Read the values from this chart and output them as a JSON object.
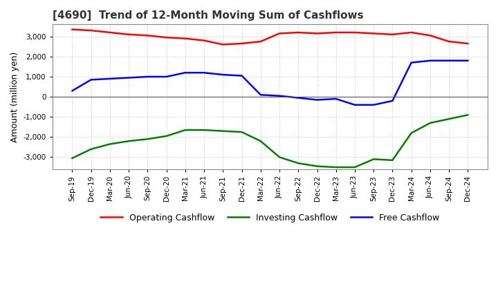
{
  "title": "[4690]  Trend of 12-Month Moving Sum of Cashflows",
  "ylabel": "Amount (million yen)",
  "ylim": [
    -3600,
    3600
  ],
  "yticks": [
    -3000,
    -2000,
    -1000,
    0,
    1000,
    2000,
    3000
  ],
  "background_color": "#ffffff",
  "plot_bg_color": "#ffffff",
  "grid_color": "#aaaaaa",
  "x_labels": [
    "Sep-19",
    "Dec-19",
    "Mar-20",
    "Jun-20",
    "Sep-20",
    "Dec-20",
    "Mar-21",
    "Jun-21",
    "Sep-21",
    "Dec-21",
    "Mar-22",
    "Jun-22",
    "Sep-22",
    "Dec-22",
    "Mar-23",
    "Jun-23",
    "Sep-23",
    "Dec-23",
    "Mar-24",
    "Jun-24",
    "Sep-24",
    "Dec-24"
  ],
  "operating": [
    3350,
    3300,
    3200,
    3100,
    3050,
    2950,
    2900,
    2800,
    2600,
    2650,
    2750,
    3150,
    3200,
    3150,
    3200,
    3200,
    3150,
    3100,
    3200,
    3050,
    2750,
    2650
  ],
  "investing": [
    -3050,
    -2600,
    -2350,
    -2200,
    -2100,
    -1950,
    -1650,
    -1650,
    -1700,
    -1750,
    -2200,
    -3000,
    -3300,
    -3450,
    -3500,
    -3500,
    -3100,
    -3150,
    -1800,
    -1300,
    -1100,
    -900
  ],
  "free": [
    300,
    850,
    900,
    950,
    1000,
    1000,
    1200,
    1200,
    1100,
    1050,
    100,
    50,
    -50,
    -150,
    -100,
    -400,
    -400,
    -200,
    1700,
    1800,
    1800,
    1800
  ],
  "op_color": "#ff0000",
  "inv_color": "#008000",
  "free_color": "#0000ff",
  "legend_labels": [
    "Operating Cashflow",
    "Investing Cashflow",
    "Free Cashflow"
  ]
}
